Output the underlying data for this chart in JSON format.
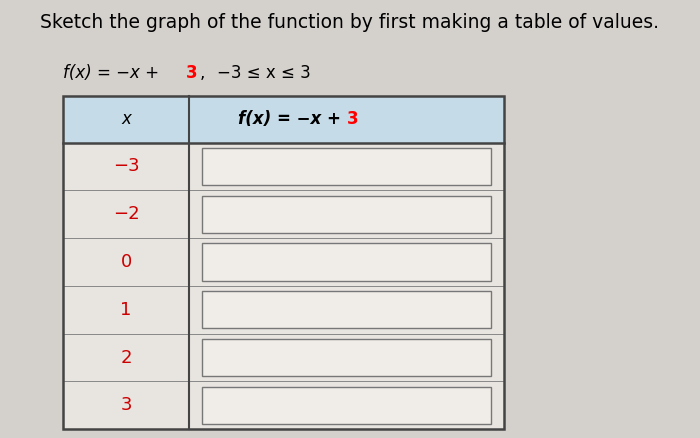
{
  "title": "Sketch the graph of the function by first making a table of values.",
  "col1_header": "x",
  "col2_header_prefix": "f(x) = −x + ",
  "col2_header_suffix": "3",
  "subtitle_prefix": "f(x) = −x + ",
  "subtitle_suffix": "3,",
  "subtitle_domain": "   −3 ≤ x ≤ 3",
  "x_values": [
    "−3",
    "−2",
    "0",
    "1",
    "2",
    "3"
  ],
  "background_color": "#d4d0cc",
  "header_bg": "#c5dce8",
  "table_body_bg": "#e8e4e0",
  "cell_box_color": "#f0ece8",
  "outer_border_color": "#444444",
  "inner_border_color": "#888888",
  "cell_border_color": "#777777",
  "title_fontsize": 13.5,
  "subtitle_fontsize": 12,
  "header_fontsize": 12,
  "row_fontsize": 13
}
